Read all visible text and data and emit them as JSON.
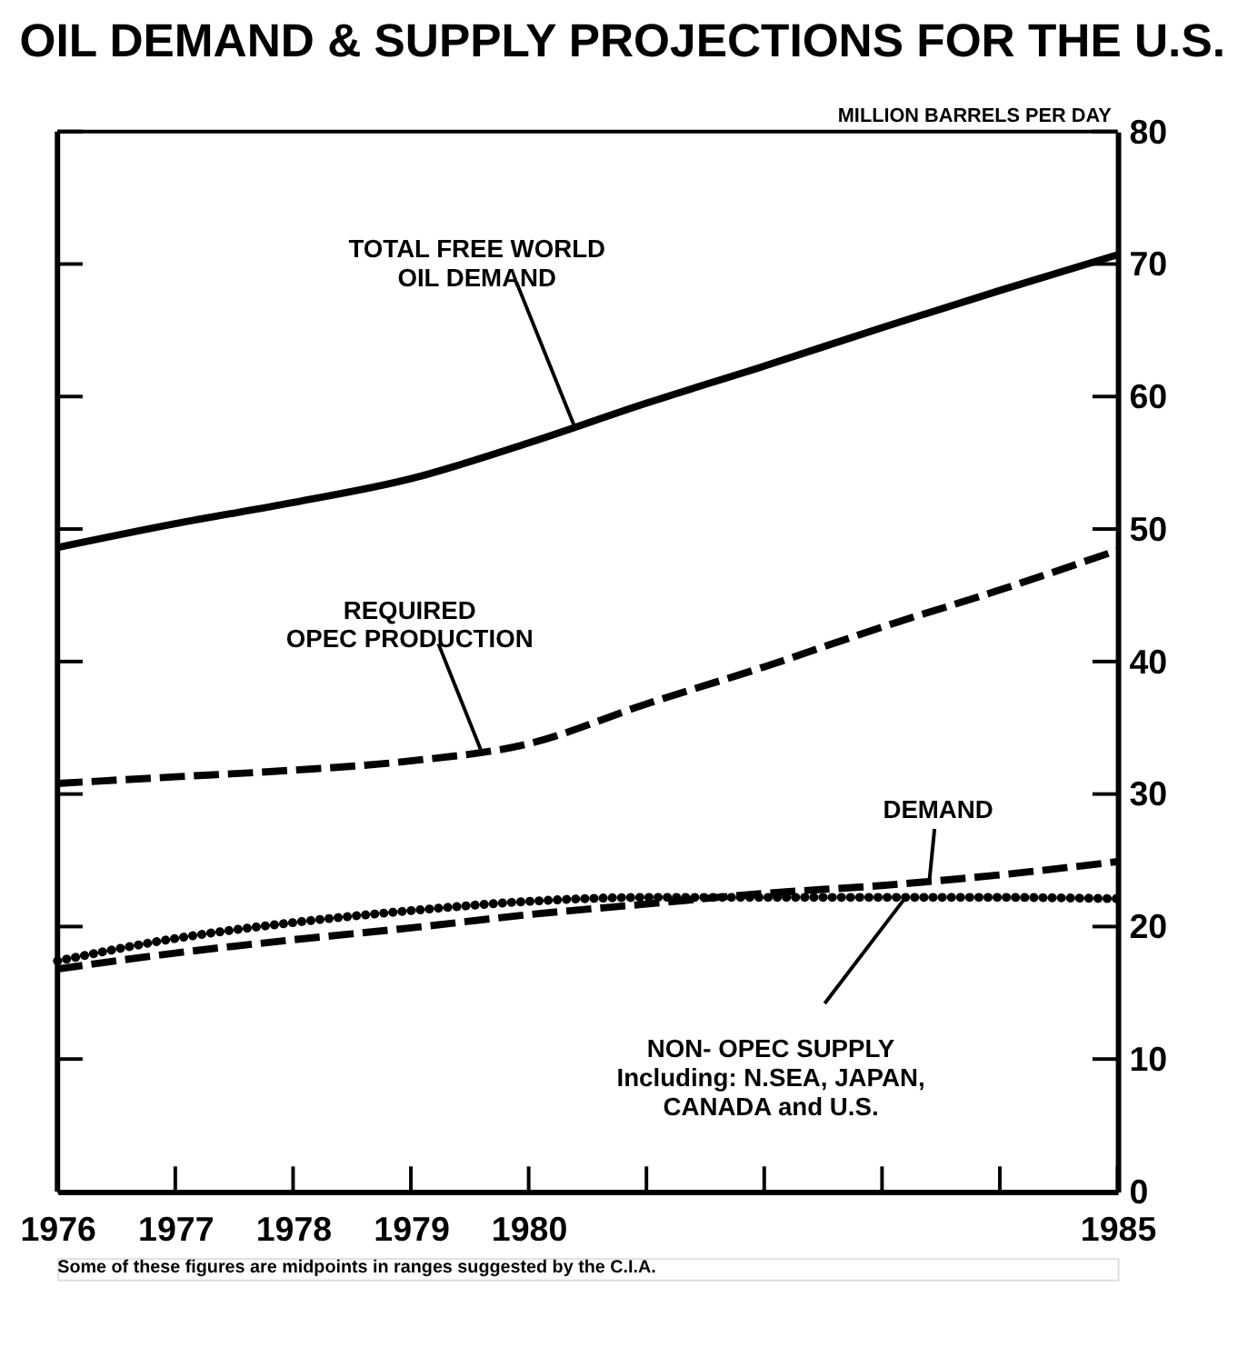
{
  "chart_data": {
    "type": "line",
    "title": "OIL DEMAND & SUPPLY PROJECTIONS FOR THE U.S.",
    "ylabel": "MILLION BARRELS PER DAY",
    "x": [
      1976,
      1977,
      1978,
      1979,
      1980,
      1981,
      1982,
      1983,
      1984,
      1985
    ],
    "series": [
      {
        "color": "#000000",
        "line_style": "solid",
        "values": [
          48.6,
          50.4,
          52,
          53.8,
          56.5,
          59.5,
          62.3,
          65.2,
          68,
          70.7
        ]
      },
      {
        "color": "#000000",
        "line_style": "dashed",
        "values": [
          30.8,
          31.3,
          31.8,
          32.5,
          33.8,
          36.8,
          39.6,
          42.6,
          45.4,
          48.4
        ]
      },
      {
        "color": "#000000",
        "line_style": "dashed",
        "values": [
          16.8,
          18,
          19,
          19.9,
          20.9,
          21.7,
          22.5,
          23.1,
          23.9,
          24.9
        ]
      },
      {
        "color": "#000000",
        "line_style": "dotted",
        "values": [
          17.4,
          19.1,
          20.3,
          21.2,
          21.9,
          22.2,
          22.2,
          22.2,
          22.2,
          22.1
        ]
      }
    ],
    "xlim": [
      1976,
      1985
    ],
    "xticks": [
      1976,
      1977,
      1978,
      1979,
      1980,
      {
        "value": 1981,
        "label": null
      },
      {
        "value": 1982,
        "label": null
      },
      {
        "value": 1983,
        "label": null
      },
      {
        "value": 1984,
        "label": null
      },
      1985
    ],
    "ylim": [
      0,
      80
    ],
    "yticks": [
      0,
      10,
      20,
      30,
      40,
      50,
      60,
      70,
      80
    ],
    "annotations": [
      {
        "text": "TOTAL FREE WORLD\nOIL DEMAND",
        "x": 1980.4,
        "y": 57.5
      },
      {
        "text": "REQUIRED\nOPEC PRODUCTION",
        "x": 1979.6,
        "y": 33.2
      },
      {
        "text": "DEMAND",
        "x": 1983.4,
        "y": 23.3
      },
      {
        "text": "NON- OPEC SUPPLY\nIncluding: N.SEA, JAPAN,\nCANADA and U.S.",
        "x": 1983.2,
        "y": 22.2
      },
      "Some of these figures are midpoints in ranges suggested by the C.I.A."
    ],
    "grid": false,
    "marker": "none"
  }
}
